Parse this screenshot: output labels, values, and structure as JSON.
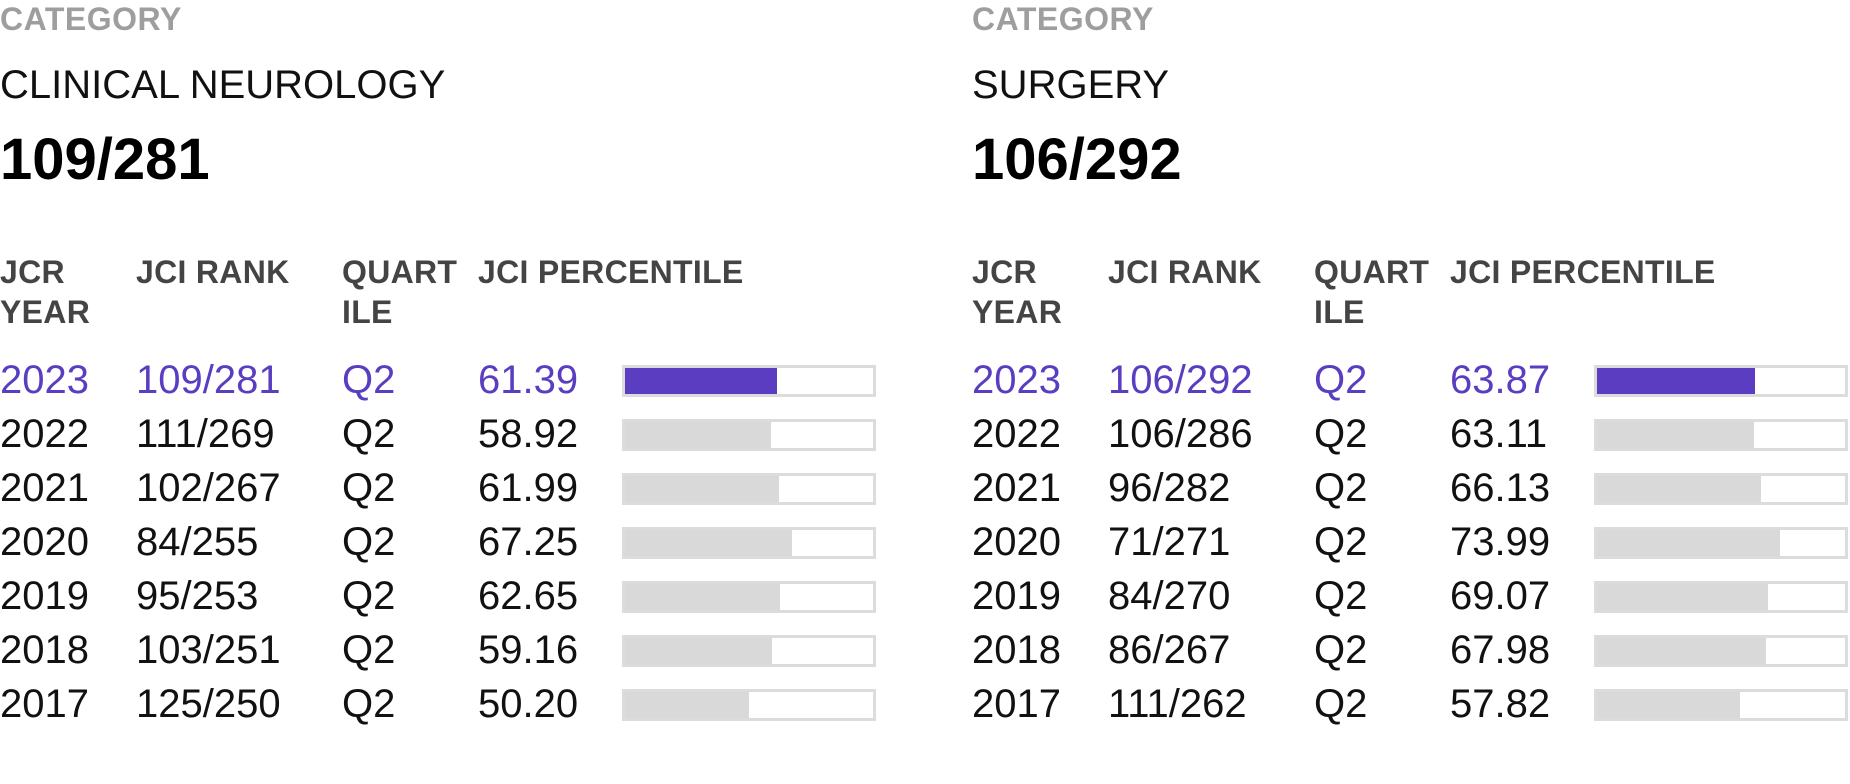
{
  "panels": [
    {
      "category_label": "CATEGORY",
      "category_name": "CLINICAL NEUROLOGY",
      "category_rank": "109/281",
      "headers": {
        "year_line1": "JCR",
        "year_line2": "YEAR",
        "rank": "JCI RANK",
        "quart_line1": "QUART",
        "quart_line2": "ILE",
        "percentile": "JCI PERCENTILE"
      },
      "rows": [
        {
          "year": "2023",
          "rank": "109/281",
          "quartile": "Q2",
          "percentile": "61.39",
          "pct_value": 61.39,
          "current": true
        },
        {
          "year": "2022",
          "rank": "111/269",
          "quartile": "Q2",
          "percentile": "58.92",
          "pct_value": 58.92,
          "current": false
        },
        {
          "year": "2021",
          "rank": "102/267",
          "quartile": "Q2",
          "percentile": "61.99",
          "pct_value": 61.99,
          "current": false
        },
        {
          "year": "2020",
          "rank": "84/255",
          "quartile": "Q2",
          "percentile": "67.25",
          "pct_value": 67.25,
          "current": false
        },
        {
          "year": "2019",
          "rank": "95/253",
          "quartile": "Q2",
          "percentile": "62.65",
          "pct_value": 62.65,
          "current": false
        },
        {
          "year": "2018",
          "rank": "103/251",
          "quartile": "Q2",
          "percentile": "59.16",
          "pct_value": 59.16,
          "current": false
        },
        {
          "year": "2017",
          "rank": "125/250",
          "quartile": "Q2",
          "percentile": "50.20",
          "pct_value": 50.2,
          "current": false
        }
      ]
    },
    {
      "category_label": "CATEGORY",
      "category_name": "SURGERY",
      "category_rank": "106/292",
      "headers": {
        "year_line1": "JCR",
        "year_line2": "YEAR",
        "rank": "JCI RANK",
        "quart_line1": "QUART",
        "quart_line2": "ILE",
        "percentile": "JCI PERCENTILE"
      },
      "rows": [
        {
          "year": "2023",
          "rank": "106/292",
          "quartile": "Q2",
          "percentile": "63.87",
          "pct_value": 63.87,
          "current": true
        },
        {
          "year": "2022",
          "rank": "106/286",
          "quartile": "Q2",
          "percentile": "63.11",
          "pct_value": 63.11,
          "current": false
        },
        {
          "year": "2021",
          "rank": "96/282",
          "quartile": "Q2",
          "percentile": "66.13",
          "pct_value": 66.13,
          "current": false
        },
        {
          "year": "2020",
          "rank": "71/271",
          "quartile": "Q2",
          "percentile": "73.99",
          "pct_value": 73.99,
          "current": false
        },
        {
          "year": "2019",
          "rank": "84/270",
          "quartile": "Q2",
          "percentile": "69.07",
          "pct_value": 69.07,
          "current": false
        },
        {
          "year": "2018",
          "rank": "86/267",
          "quartile": "Q2",
          "percentile": "67.98",
          "pct_value": 67.98,
          "current": false
        },
        {
          "year": "2017",
          "rank": "111/262",
          "quartile": "Q2",
          "percentile": "57.82",
          "pct_value": 57.82,
          "current": false
        }
      ]
    }
  ],
  "colors": {
    "accent": "#5a3dc0",
    "bar_fill": "#d9d9d9",
    "bar_border": "#dcdcdc",
    "label_gray": "#9e9e9e",
    "header_gray": "#444444"
  }
}
